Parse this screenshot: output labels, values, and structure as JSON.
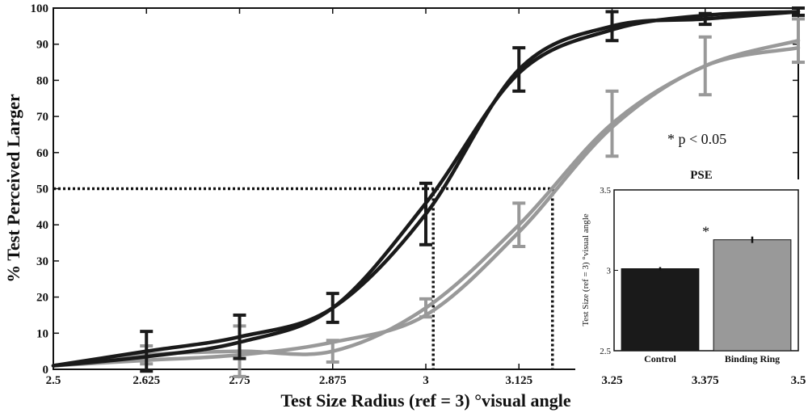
{
  "colors": {
    "control": "#1a1a1a",
    "binding_ring": "#999999"
  },
  "chart_data": [
    {
      "type": "line",
      "xlabel": "Test Size Radius (ref = 3) °visual angle",
      "ylabel": "% Test Perceived Larger",
      "x_tick_labels": [
        "2.5",
        "2.625",
        "2.75",
        "2.875",
        "3",
        "3.125",
        "3.25",
        "3.375",
        "3.5"
      ],
      "y_tick_labels": [
        "0",
        "10",
        "20",
        "30",
        "40",
        "50",
        "60",
        "70",
        "80",
        "90",
        "100"
      ],
      "xlim": [
        2.5,
        3.5
      ],
      "ylim": [
        0,
        100
      ],
      "x": [
        2.5,
        2.625,
        2.75,
        2.875,
        3,
        3.125,
        3.25,
        3.375,
        3.5
      ],
      "series": [
        {
          "color": "control",
          "kind": "data",
          "values": [
            1,
            5,
            9,
            17,
            43,
            83,
            95,
            97,
            99
          ],
          "errors": [
            1,
            5.5,
            6,
            4,
            8.5,
            6,
            4,
            1.5,
            1
          ]
        },
        {
          "color": "control",
          "kind": "fit",
          "values": [
            1,
            3.5,
            7.5,
            17,
            46,
            82,
            94,
            98,
            99
          ]
        },
        {
          "color": "binding_ring",
          "kind": "data",
          "values": [
            1,
            4,
            5,
            5,
            17,
            40,
            68,
            84,
            91
          ],
          "errors": [
            1,
            2.5,
            7,
            3,
            2.5,
            6,
            9,
            8,
            6
          ]
        },
        {
          "color": "binding_ring",
          "kind": "fit",
          "values": [
            1,
            2.5,
            4,
            7.5,
            15,
            38,
            67,
            84,
            89
          ]
        }
      ],
      "pse_reference_line": {
        "y": 50,
        "x_control": 3.01,
        "x_binding_ring": 3.17
      },
      "grid": false,
      "annotations": [
        "* p < 0.05"
      ]
    },
    {
      "type": "bar",
      "title": "PSE",
      "ylabel": "Test Size (ref = 3) °visual angle",
      "categories": [
        "Control",
        "Binding Ring"
      ],
      "values": [
        3.01,
        3.19
      ],
      "errors": [
        0.01,
        0.02
      ],
      "ylim": [
        2.5,
        3.5
      ],
      "y_tick_labels": [
        "2.5",
        "3",
        "3.5"
      ],
      "significance_marker": "*"
    }
  ]
}
